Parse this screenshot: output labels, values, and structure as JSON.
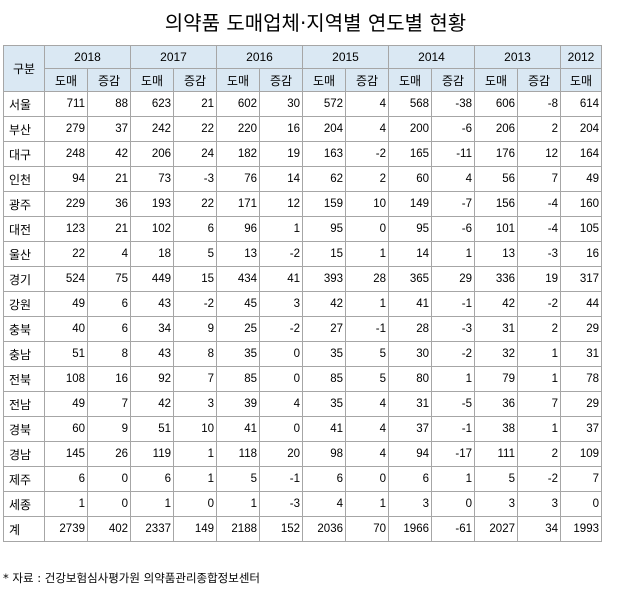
{
  "title": "의약품 도매업체·지역별 연도별 현황",
  "header": {
    "gubun": "구분",
    "years": [
      "2018",
      "2017",
      "2016",
      "2015",
      "2014",
      "2013",
      "2012"
    ],
    "sub_wholesale": "도매",
    "sub_change": "증감"
  },
  "rows": [
    {
      "region": "서울",
      "values": [
        "711",
        "88",
        "623",
        "21",
        "602",
        "30",
        "572",
        "4",
        "568",
        "-38",
        "606",
        "-8",
        "614"
      ]
    },
    {
      "region": "부산",
      "values": [
        "279",
        "37",
        "242",
        "22",
        "220",
        "16",
        "204",
        "4",
        "200",
        "-6",
        "206",
        "2",
        "204"
      ]
    },
    {
      "region": "대구",
      "values": [
        "248",
        "42",
        "206",
        "24",
        "182",
        "19",
        "163",
        "-2",
        "165",
        "-11",
        "176",
        "12",
        "164"
      ]
    },
    {
      "region": "인천",
      "values": [
        "94",
        "21",
        "73",
        "-3",
        "76",
        "14",
        "62",
        "2",
        "60",
        "4",
        "56",
        "7",
        "49"
      ]
    },
    {
      "region": "광주",
      "values": [
        "229",
        "36",
        "193",
        "22",
        "171",
        "12",
        "159",
        "10",
        "149",
        "-7",
        "156",
        "-4",
        "160"
      ]
    },
    {
      "region": "대전",
      "values": [
        "123",
        "21",
        "102",
        "6",
        "96",
        "1",
        "95",
        "0",
        "95",
        "-6",
        "101",
        "-4",
        "105"
      ]
    },
    {
      "region": "울산",
      "values": [
        "22",
        "4",
        "18",
        "5",
        "13",
        "-2",
        "15",
        "1",
        "14",
        "1",
        "13",
        "-3",
        "16"
      ]
    },
    {
      "region": "경기",
      "values": [
        "524",
        "75",
        "449",
        "15",
        "434",
        "41",
        "393",
        "28",
        "365",
        "29",
        "336",
        "19",
        "317"
      ]
    },
    {
      "region": "강원",
      "values": [
        "49",
        "6",
        "43",
        "-2",
        "45",
        "3",
        "42",
        "1",
        "41",
        "-1",
        "42",
        "-2",
        "44"
      ]
    },
    {
      "region": "충북",
      "values": [
        "40",
        "6",
        "34",
        "9",
        "25",
        "-2",
        "27",
        "-1",
        "28",
        "-3",
        "31",
        "2",
        "29"
      ]
    },
    {
      "region": "충남",
      "values": [
        "51",
        "8",
        "43",
        "8",
        "35",
        "0",
        "35",
        "5",
        "30",
        "-2",
        "32",
        "1",
        "31"
      ]
    },
    {
      "region": "전북",
      "values": [
        "108",
        "16",
        "92",
        "7",
        "85",
        "0",
        "85",
        "5",
        "80",
        "1",
        "79",
        "1",
        "78"
      ]
    },
    {
      "region": "전남",
      "values": [
        "49",
        "7",
        "42",
        "3",
        "39",
        "4",
        "35",
        "4",
        "31",
        "-5",
        "36",
        "7",
        "29"
      ]
    },
    {
      "region": "경북",
      "values": [
        "60",
        "9",
        "51",
        "10",
        "41",
        "0",
        "41",
        "4",
        "37",
        "-1",
        "38",
        "1",
        "37"
      ]
    },
    {
      "region": "경남",
      "values": [
        "145",
        "26",
        "119",
        "1",
        "118",
        "20",
        "98",
        "4",
        "94",
        "-17",
        "111",
        "2",
        "109"
      ]
    },
    {
      "region": "제주",
      "values": [
        "6",
        "0",
        "6",
        "1",
        "5",
        "-1",
        "6",
        "0",
        "6",
        "1",
        "5",
        "-2",
        "7"
      ]
    },
    {
      "region": "세종",
      "values": [
        "1",
        "0",
        "1",
        "0",
        "1",
        "-3",
        "4",
        "1",
        "3",
        "0",
        "3",
        "3",
        "0"
      ]
    },
    {
      "region": "계",
      "values": [
        "2739",
        "402",
        "2337",
        "149",
        "2188",
        "152",
        "2036",
        "70",
        "1966",
        "-61",
        "2027",
        "34",
        "1993"
      ]
    }
  ],
  "note": "* 자료 : 건강보험심사평가원 의약품관리종합정보센터"
}
